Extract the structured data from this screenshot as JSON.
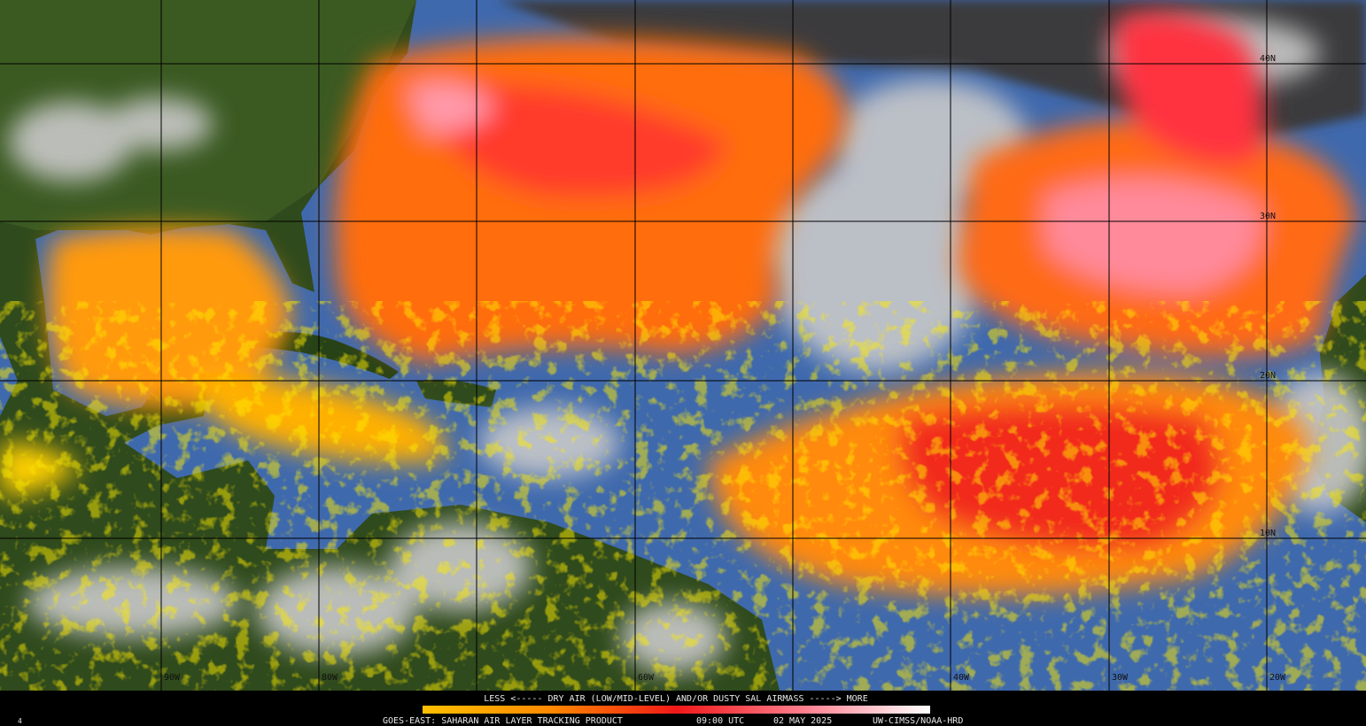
{
  "map": {
    "lat_labels": [
      "40N",
      "30N",
      "20N",
      "10N"
    ],
    "lon_labels": [
      "90W",
      "80W",
      "60W",
      "40W",
      "30W",
      "20W"
    ],
    "legend": {
      "caption": "LESS <----- DRY AIR (LOW/MID-LEVEL) AND/OR DUSTY SAL AIRMASS -----> MORE"
    },
    "footer": {
      "frame": "4",
      "product": "GOES-EAST: SAHARAN AIR LAYER TRACKING PRODUCT",
      "time": "09:00 UTC",
      "date": "02 MAY 2025",
      "credit": "UW-CIMSS/NOAA-HRD"
    }
  }
}
